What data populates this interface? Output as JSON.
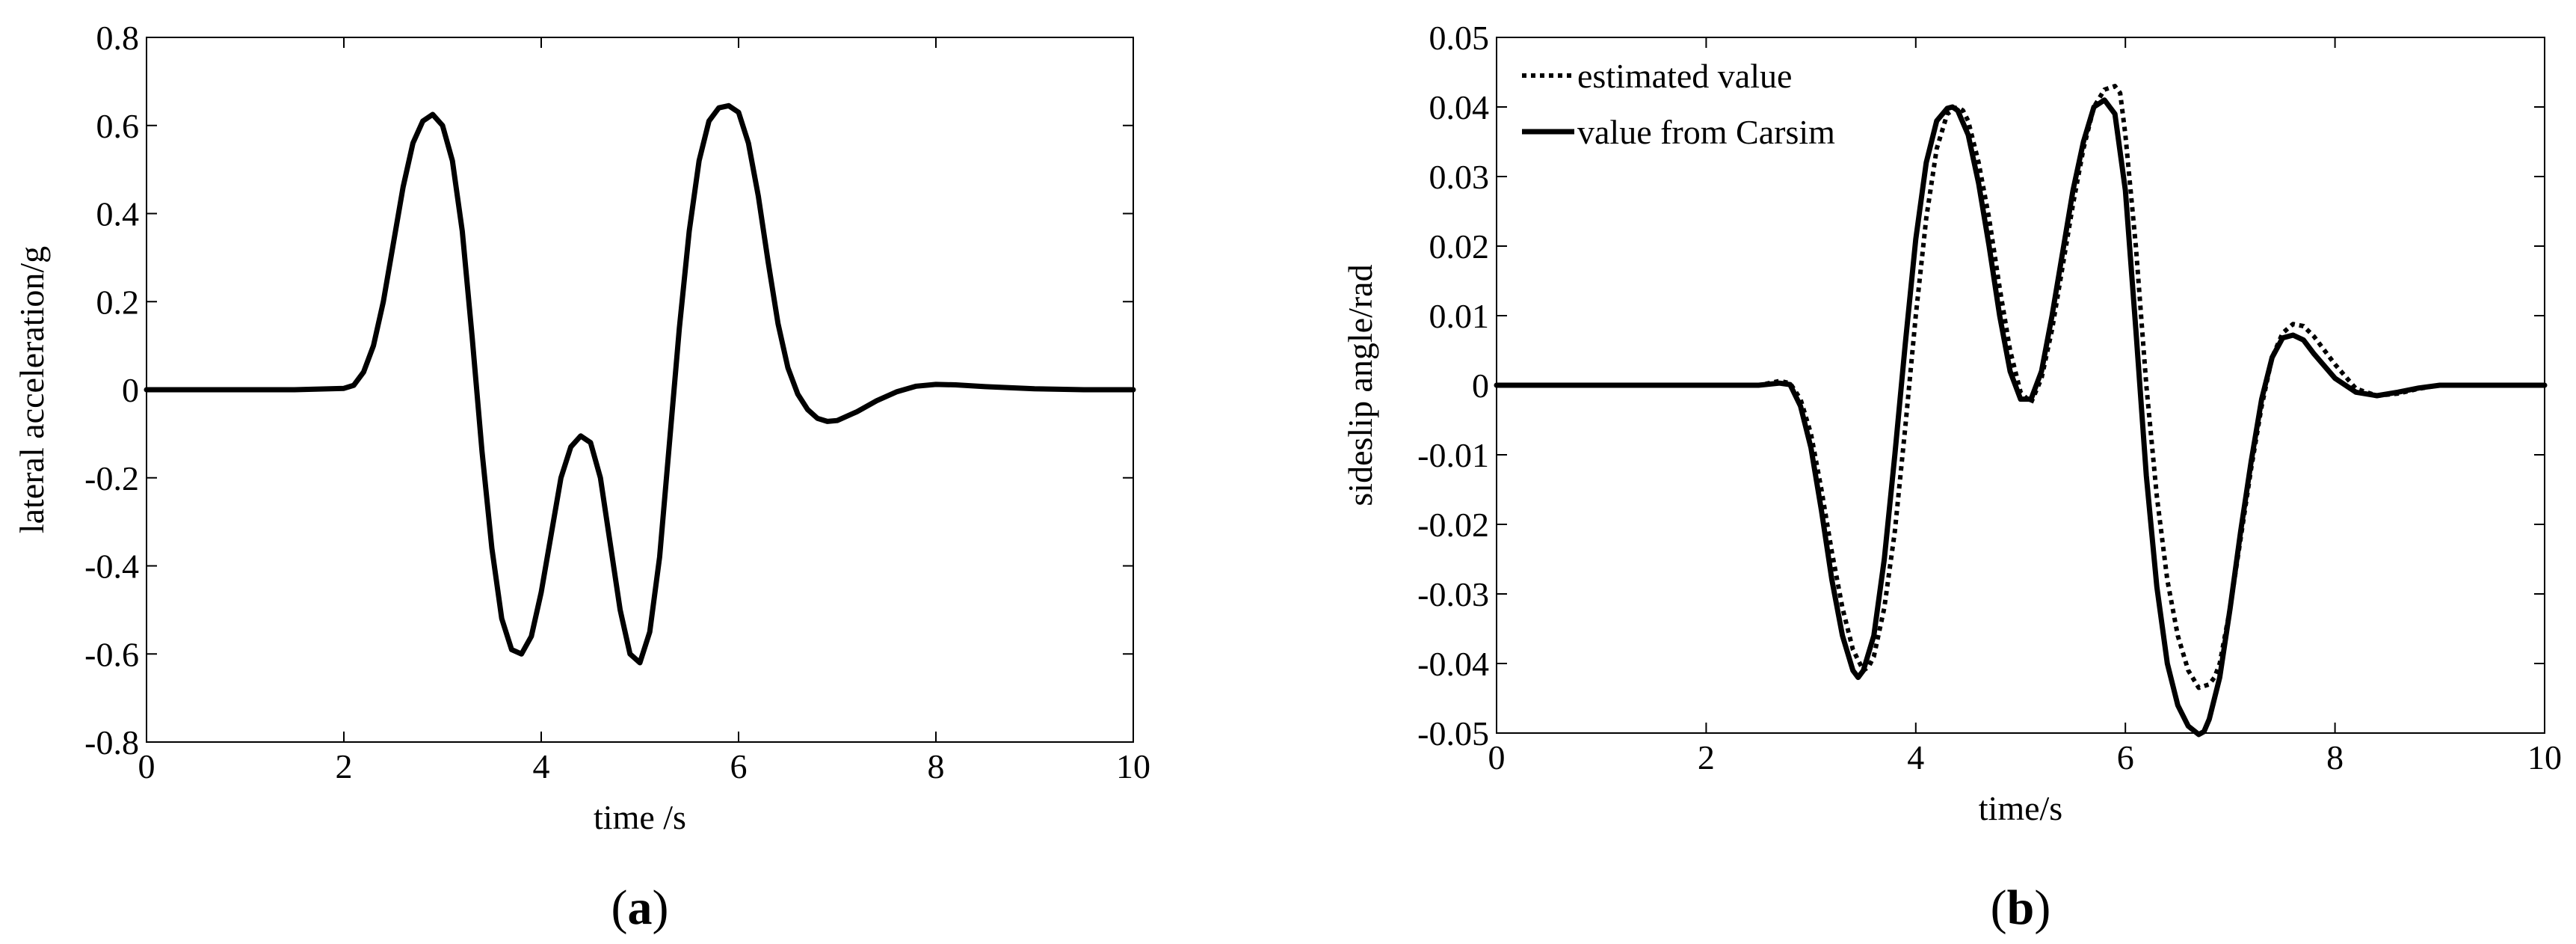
{
  "chart_data": [
    {
      "type": "line",
      "caption": "(a)",
      "caption_letter": "a",
      "xlabel": "time /s",
      "ylabel": "lateral acceleration/g",
      "xlim": [
        0,
        10
      ],
      "ylim": [
        -0.8,
        0.8
      ],
      "xticks": [
        0,
        2,
        4,
        6,
        8,
        10
      ],
      "yticks": [
        -0.8,
        -0.6,
        -0.4,
        -0.2,
        0,
        0.2,
        0.4,
        0.6,
        0.8
      ],
      "ytick_labels": [
        "-0.8",
        "-0.6",
        "-0.4",
        "-0.2",
        "0",
        "0.2",
        "0.4",
        "0.6",
        "0.8"
      ],
      "xtick_labels": [
        "0",
        "2",
        "4",
        "6",
        "8",
        "10"
      ],
      "grid": false,
      "series": [
        {
          "style": "solid",
          "color": "#000000",
          "x": [
            0,
            0.5,
            1.0,
            1.5,
            2.0,
            2.1,
            2.2,
            2.3,
            2.4,
            2.5,
            2.6,
            2.7,
            2.8,
            2.9,
            3.0,
            3.1,
            3.2,
            3.3,
            3.4,
            3.5,
            3.6,
            3.7,
            3.8,
            3.9,
            4.0,
            4.1,
            4.2,
            4.3,
            4.4,
            4.5,
            4.6,
            4.7,
            4.8,
            4.9,
            5.0,
            5.1,
            5.2,
            5.3,
            5.4,
            5.5,
            5.6,
            5.7,
            5.8,
            5.9,
            6.0,
            6.1,
            6.2,
            6.3,
            6.4,
            6.5,
            6.6,
            6.7,
            6.8,
            6.9,
            7.0,
            7.2,
            7.4,
            7.6,
            7.8,
            8.0,
            8.2,
            8.5,
            9.0,
            9.5,
            10.0
          ],
          "y": [
            0,
            0,
            0,
            0,
            0.003,
            0.01,
            0.04,
            0.1,
            0.2,
            0.33,
            0.46,
            0.56,
            0.61,
            0.625,
            0.6,
            0.52,
            0.36,
            0.12,
            -0.14,
            -0.36,
            -0.52,
            -0.59,
            -0.6,
            -0.56,
            -0.46,
            -0.33,
            -0.2,
            -0.13,
            -0.105,
            -0.12,
            -0.2,
            -0.35,
            -0.5,
            -0.6,
            -0.62,
            -0.55,
            -0.38,
            -0.12,
            0.14,
            0.36,
            0.52,
            0.61,
            0.64,
            0.645,
            0.63,
            0.56,
            0.44,
            0.29,
            0.15,
            0.05,
            -0.01,
            -0.045,
            -0.065,
            -0.072,
            -0.07,
            -0.05,
            -0.025,
            -0.005,
            0.008,
            0.012,
            0.011,
            0.007,
            0.002,
            0,
            0
          ]
        }
      ]
    },
    {
      "type": "line",
      "caption": "(b)",
      "caption_letter": "b",
      "xlabel": "time/s",
      "ylabel": "sideslip angle/rad",
      "xlim": [
        0,
        10
      ],
      "ylim": [
        -0.05,
        0.05
      ],
      "xticks": [
        0,
        2,
        4,
        6,
        8,
        10
      ],
      "yticks": [
        -0.05,
        -0.04,
        -0.03,
        -0.02,
        -0.01,
        0,
        0.01,
        0.02,
        0.03,
        0.04,
        0.05
      ],
      "ytick_labels": [
        "-0.05",
        "-0.04",
        "-0.03",
        "-0.02",
        "-0.01",
        "0",
        "0.01",
        "0.02",
        "0.03",
        "0.04",
        "0.05"
      ],
      "xtick_labels": [
        "0",
        "2",
        "4",
        "6",
        "8",
        "10"
      ],
      "grid": false,
      "legend": "top-left",
      "series": [
        {
          "name": "estimated value",
          "style": "dotted",
          "color": "#000000",
          "x": [
            0,
            1.0,
            2.0,
            2.5,
            2.7,
            2.8,
            2.9,
            3.0,
            3.1,
            3.2,
            3.3,
            3.4,
            3.5,
            3.55,
            3.6,
            3.7,
            3.8,
            3.9,
            4.0,
            4.1,
            4.2,
            4.3,
            4.4,
            4.45,
            4.5,
            4.6,
            4.7,
            4.8,
            4.9,
            5.0,
            5.1,
            5.2,
            5.3,
            5.4,
            5.5,
            5.6,
            5.7,
            5.8,
            5.9,
            5.95,
            6.0,
            6.1,
            6.2,
            6.3,
            6.4,
            6.5,
            6.6,
            6.7,
            6.8,
            6.85,
            6.9,
            7.0,
            7.1,
            7.2,
            7.3,
            7.4,
            7.5,
            7.6,
            7.7,
            7.8,
            8.0,
            8.2,
            8.4,
            8.6,
            8.8,
            9.0,
            9.5,
            10.0
          ],
          "y": [
            0,
            0,
            0,
            0,
            0.0006,
            0.0003,
            -0.002,
            -0.007,
            -0.015,
            -0.024,
            -0.032,
            -0.038,
            -0.041,
            -0.0405,
            -0.039,
            -0.032,
            -0.021,
            -0.006,
            0.01,
            0.024,
            0.034,
            0.039,
            0.04,
            0.0395,
            0.038,
            0.032,
            0.024,
            0.014,
            0.005,
            -0.001,
            -0.0025,
            0.001,
            0.008,
            0.017,
            0.026,
            0.034,
            0.04,
            0.0425,
            0.043,
            0.042,
            0.036,
            0.02,
            0.0,
            -0.016,
            -0.028,
            -0.036,
            -0.041,
            -0.0435,
            -0.043,
            -0.042,
            -0.04,
            -0.032,
            -0.022,
            -0.012,
            -0.003,
            0.004,
            0.0075,
            0.0088,
            0.0085,
            0.007,
            0.003,
            -0.0005,
            -0.0015,
            -0.0012,
            -0.0005,
            0,
            0,
            0
          ]
        },
        {
          "name": "value from Carsim",
          "style": "solid",
          "color": "#000000",
          "x": [
            0,
            1.0,
            2.0,
            2.5,
            2.7,
            2.8,
            2.9,
            3.0,
            3.1,
            3.2,
            3.3,
            3.4,
            3.45,
            3.5,
            3.6,
            3.7,
            3.8,
            3.9,
            4.0,
            4.1,
            4.2,
            4.3,
            4.35,
            4.4,
            4.5,
            4.6,
            4.7,
            4.8,
            4.9,
            5.0,
            5.1,
            5.2,
            5.3,
            5.4,
            5.5,
            5.6,
            5.7,
            5.8,
            5.9,
            6.0,
            6.1,
            6.2,
            6.3,
            6.4,
            6.5,
            6.6,
            6.7,
            6.75,
            6.8,
            6.9,
            7.0,
            7.1,
            7.2,
            7.3,
            7.4,
            7.5,
            7.6,
            7.7,
            7.8,
            8.0,
            8.2,
            8.4,
            8.6,
            8.8,
            9.0,
            9.5,
            10.0
          ],
          "y": [
            0,
            0,
            0,
            0,
            0.0003,
            0.0001,
            -0.003,
            -0.009,
            -0.018,
            -0.028,
            -0.036,
            -0.041,
            -0.042,
            -0.041,
            -0.036,
            -0.025,
            -0.01,
            0.006,
            0.021,
            0.032,
            0.038,
            0.0398,
            0.04,
            0.0395,
            0.036,
            0.029,
            0.02,
            0.01,
            0.002,
            -0.002,
            -0.002,
            0.002,
            0.01,
            0.019,
            0.028,
            0.035,
            0.04,
            0.041,
            0.039,
            0.028,
            0.008,
            -0.013,
            -0.029,
            -0.04,
            -0.046,
            -0.049,
            -0.0502,
            -0.0498,
            -0.048,
            -0.042,
            -0.032,
            -0.021,
            -0.011,
            -0.002,
            0.004,
            0.0068,
            0.0072,
            0.0065,
            0.0045,
            0.001,
            -0.001,
            -0.0015,
            -0.001,
            -0.0004,
            0,
            0,
            0
          ]
        }
      ]
    }
  ]
}
